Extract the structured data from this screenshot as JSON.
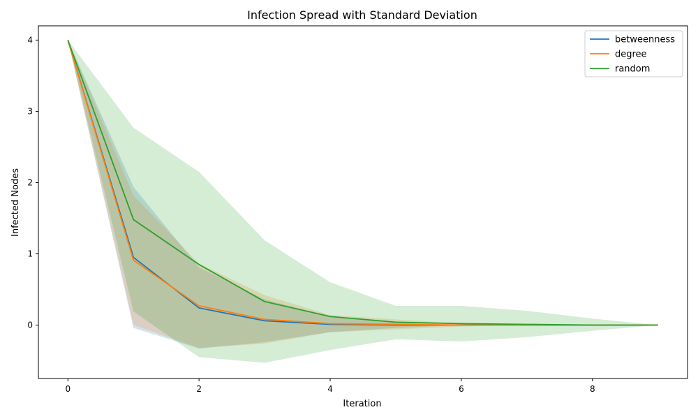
{
  "chart_data": {
    "type": "line",
    "title": "Infection Spread with Standard Deviation",
    "xlabel": "Iteration",
    "ylabel": "Infected Nodes",
    "xlim": [
      -0.45,
      9.45
    ],
    "ylim": [
      -0.75,
      4.2
    ],
    "xticks": [
      0,
      2,
      4,
      6,
      8
    ],
    "yticks": [
      0,
      1,
      2,
      3,
      4
    ],
    "grid": false,
    "legend_position": "top-right",
    "x": [
      0,
      1,
      2,
      3,
      4,
      5,
      6,
      7,
      8,
      9
    ],
    "series": [
      {
        "name": "betweenness",
        "color": "#1f77b4",
        "values": [
          4.0,
          0.95,
          0.24,
          0.06,
          0.01,
          0.0,
          0.0,
          0.0,
          0.0,
          0.0
        ],
        "lower": [
          4.0,
          -0.04,
          -0.33,
          -0.24,
          -0.1,
          -0.04,
          0.0,
          0.0,
          0.0,
          0.0
        ],
        "upper": [
          4.0,
          1.94,
          0.81,
          0.36,
          0.12,
          0.04,
          0.0,
          0.0,
          0.0,
          0.0
        ]
      },
      {
        "name": "degree",
        "color": "#ff7f0e",
        "values": [
          4.0,
          0.91,
          0.27,
          0.08,
          0.02,
          0.01,
          0.0,
          0.0,
          0.0,
          0.0
        ],
        "lower": [
          4.0,
          0.0,
          -0.32,
          -0.26,
          -0.1,
          -0.06,
          -0.02,
          0.0,
          0.0,
          0.0
        ],
        "upper": [
          4.0,
          1.82,
          0.86,
          0.42,
          0.14,
          0.08,
          0.02,
          0.0,
          0.0,
          0.0
        ]
      },
      {
        "name": "random",
        "color": "#2ca02c",
        "values": [
          4.0,
          1.48,
          0.85,
          0.33,
          0.12,
          0.04,
          0.02,
          0.01,
          0.0,
          0.0
        ],
        "lower": [
          4.0,
          0.19,
          -0.45,
          -0.53,
          -0.35,
          -0.2,
          -0.23,
          -0.17,
          -0.08,
          0.0
        ],
        "upper": [
          4.0,
          2.77,
          2.15,
          1.19,
          0.6,
          0.27,
          0.27,
          0.2,
          0.09,
          0.0
        ]
      }
    ]
  }
}
